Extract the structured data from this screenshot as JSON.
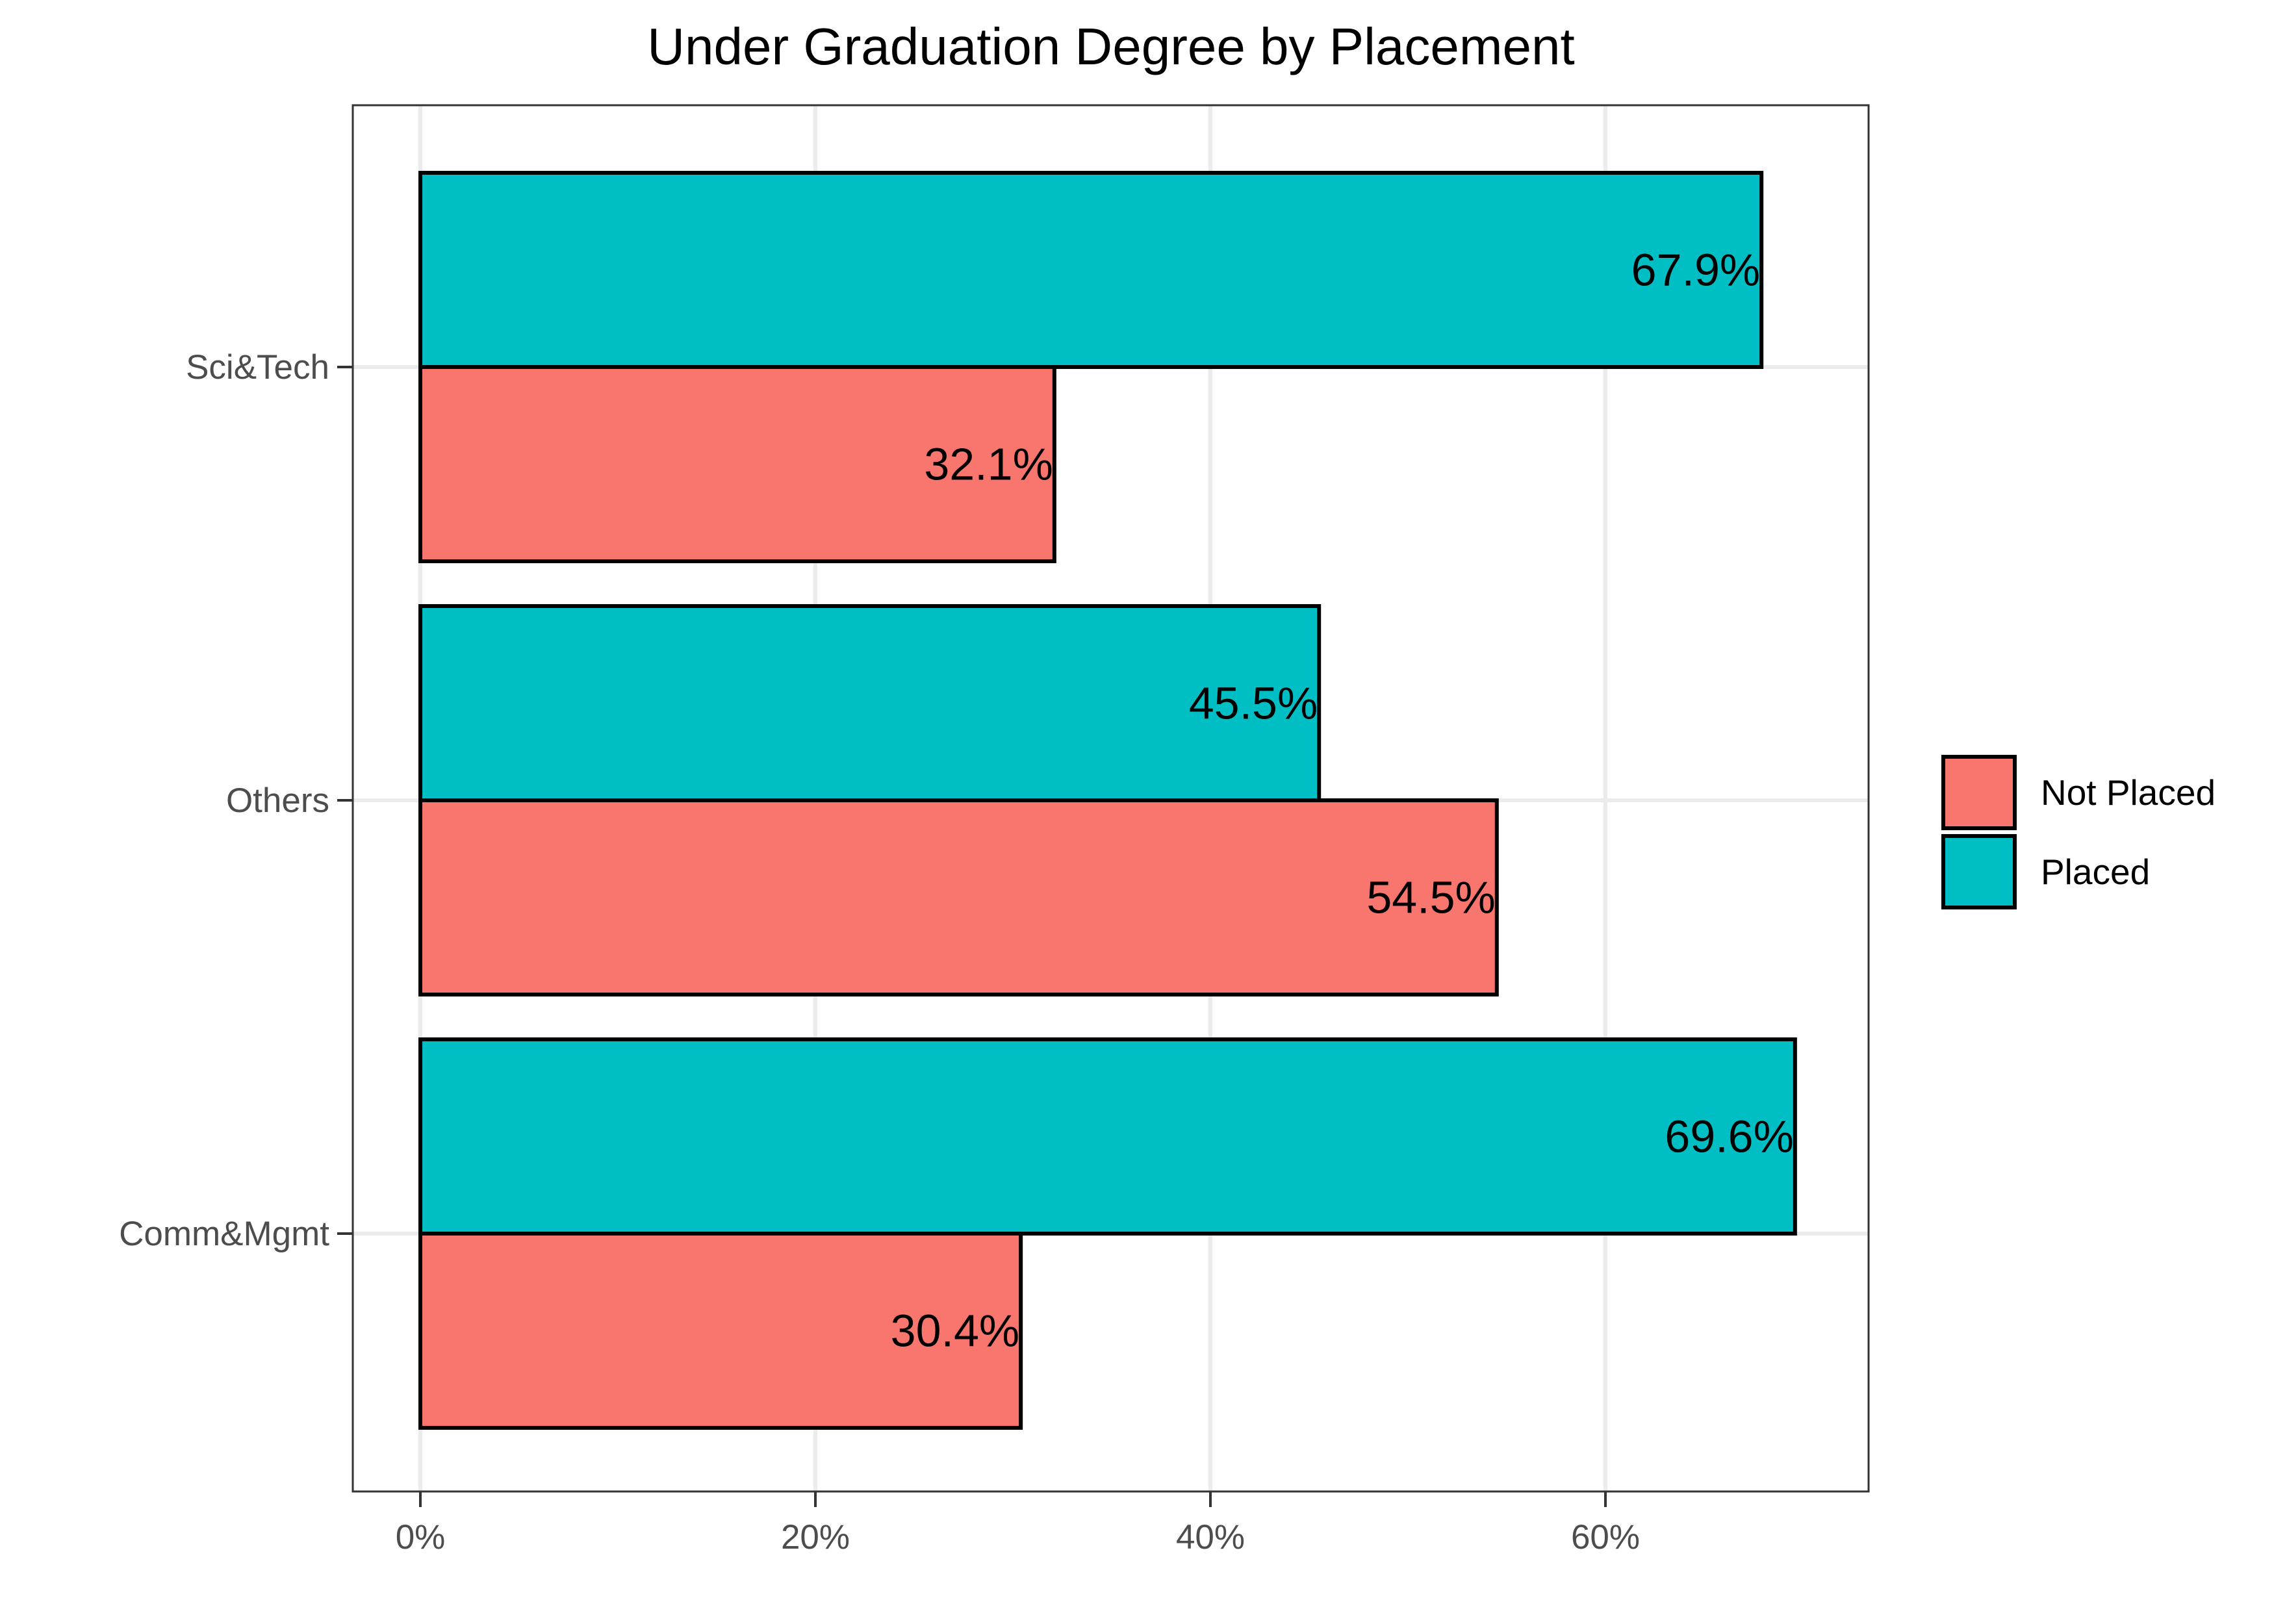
{
  "chart_data": {
    "type": "bar",
    "orientation": "horizontal",
    "title": "Under Graduation Degree by Placement",
    "xlabel": "",
    "ylabel": "",
    "categories": [
      "Comm&Mgmt",
      "Others",
      "Sci&Tech"
    ],
    "series": [
      {
        "name": "Not Placed",
        "color": "#F8766D",
        "values": [
          30.4,
          54.5,
          32.1
        ],
        "labels": [
          "30.4%",
          "54.5%",
          "32.1%"
        ]
      },
      {
        "name": "Placed",
        "color": "#00BFC4",
        "values": [
          69.6,
          45.5,
          67.9
        ],
        "labels": [
          "69.6%",
          "45.5%",
          "67.9%"
        ]
      }
    ],
    "xlim": [
      0,
      73.4
    ],
    "x_ticks": [
      0,
      20,
      40,
      60
    ],
    "x_tick_labels": [
      "0%",
      "20%",
      "40%",
      "60%"
    ],
    "grid": true,
    "legend_position": "right"
  }
}
